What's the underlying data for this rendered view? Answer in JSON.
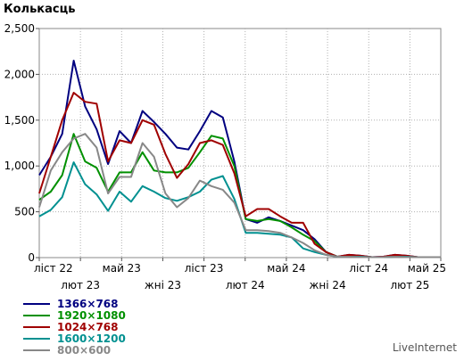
{
  "chart_data": {
    "type": "line",
    "ylabel": "Колькасць",
    "ylim": [
      0,
      2500
    ],
    "yticks": [
      0,
      500,
      1000,
      1500,
      2000,
      2500
    ],
    "ytick_labels": [
      "0",
      "500",
      "1,000",
      "1,500",
      "2,000",
      "2,500"
    ],
    "xlim": [
      0,
      39
    ],
    "xticks": [
      {
        "label": "ліст 22",
        "x": 0,
        "row": 0
      },
      {
        "label": "лют 23",
        "x": 4,
        "row": 1
      },
      {
        "label": "май 23",
        "x": 8,
        "row": 0
      },
      {
        "label": "жні 23",
        "x": 12,
        "row": 1
      },
      {
        "label": "ліст 23",
        "x": 16,
        "row": 0
      },
      {
        "label": "лют 24",
        "x": 20,
        "row": 1
      },
      {
        "label": "май 24",
        "x": 24,
        "row": 0
      },
      {
        "label": "жні 24",
        "x": 28,
        "row": 1
      },
      {
        "label": "ліст 24",
        "x": 32,
        "row": 0
      },
      {
        "label": "лют 25",
        "x": 36,
        "row": 1
      },
      {
        "label": "май 25",
        "x": 39.5,
        "row": 0
      }
    ],
    "grid": true,
    "legend_position": "bottom-left",
    "series": [
      {
        "name": "1366×768",
        "color": "#000080",
        "values": [
          900,
          1100,
          1350,
          2150,
          1650,
          1400,
          1020,
          1380,
          1250,
          1600,
          1480,
          1350,
          1200,
          1180,
          1380,
          1600,
          1530,
          1050,
          420,
          380,
          440,
          400,
          350,
          300,
          200,
          60,
          10,
          30,
          20,
          5,
          10,
          30,
          20,
          5,
          5,
          5
        ]
      },
      {
        "name": "1920×1080",
        "color": "#009000",
        "values": [
          630,
          720,
          900,
          1350,
          1050,
          980,
          720,
          930,
          930,
          1150,
          950,
          930,
          930,
          980,
          1150,
          1330,
          1300,
          1000,
          420,
          400,
          420,
          400,
          330,
          250,
          180,
          60,
          10,
          20,
          10,
          5,
          5,
          20,
          10,
          5,
          5,
          5
        ]
      },
      {
        "name": "1024×768",
        "color": "#a00000",
        "values": [
          700,
          1100,
          1500,
          1800,
          1700,
          1680,
          1050,
          1280,
          1250,
          1500,
          1450,
          1130,
          870,
          1020,
          1250,
          1280,
          1230,
          920,
          450,
          530,
          530,
          450,
          380,
          380,
          150,
          60,
          10,
          30,
          20,
          5,
          10,
          30,
          20,
          5,
          5,
          5
        ]
      },
      {
        "name": "1600×1200",
        "color": "#009090",
        "values": [
          450,
          520,
          660,
          1040,
          800,
          690,
          510,
          720,
          610,
          780,
          720,
          650,
          620,
          660,
          720,
          850,
          890,
          640,
          270,
          270,
          260,
          250,
          220,
          100,
          60,
          30,
          10,
          10,
          10,
          5,
          5,
          10,
          10,
          5,
          5,
          5
        ]
      },
      {
        "name": "800×600",
        "color": "#888888",
        "values": [
          550,
          950,
          1150,
          1300,
          1350,
          1200,
          700,
          880,
          880,
          1250,
          1100,
          700,
          550,
          650,
          840,
          780,
          740,
          600,
          300,
          300,
          290,
          270,
          220,
          160,
          80,
          30,
          10,
          10,
          5,
          5,
          5,
          10,
          5,
          5,
          5,
          5
        ]
      }
    ]
  },
  "legend": {
    "items": [
      "1366×768",
      "1920×1080",
      "1024×768",
      "1600×1200",
      "800×600"
    ]
  },
  "brand": {
    "label": "LiveInternet"
  }
}
